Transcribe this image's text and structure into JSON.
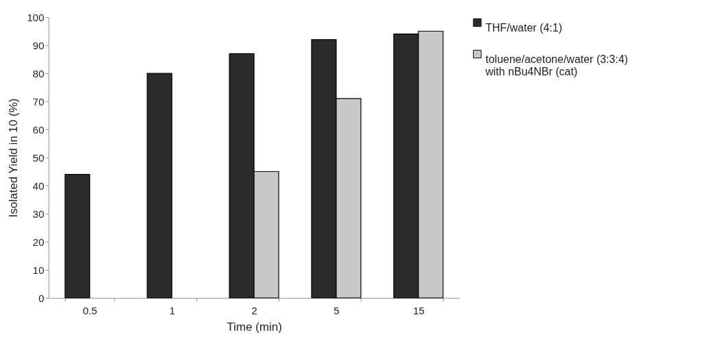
{
  "chart_data": {
    "type": "bar",
    "xlabel": "Time (min)",
    "ylabel": "Isolated Yield in 10 (%)",
    "categories": [
      "0.5",
      "1",
      "2",
      "5",
      "15"
    ],
    "series": [
      {
        "name": "THF/water (4:1)",
        "color": "#2b2b2b",
        "values": [
          44,
          80,
          87,
          92,
          94
        ]
      },
      {
        "name": "toluene/acetone/water (3:3:4) with nBu4NBr (cat)",
        "color": "#c8c8c8",
        "values": [
          null,
          null,
          45,
          71,
          95
        ]
      }
    ],
    "ylim": [
      0,
      100
    ],
    "yticks": [
      0,
      10,
      20,
      30,
      40,
      50,
      60,
      70,
      80,
      90,
      100
    ],
    "grid": false,
    "legend": "right"
  }
}
